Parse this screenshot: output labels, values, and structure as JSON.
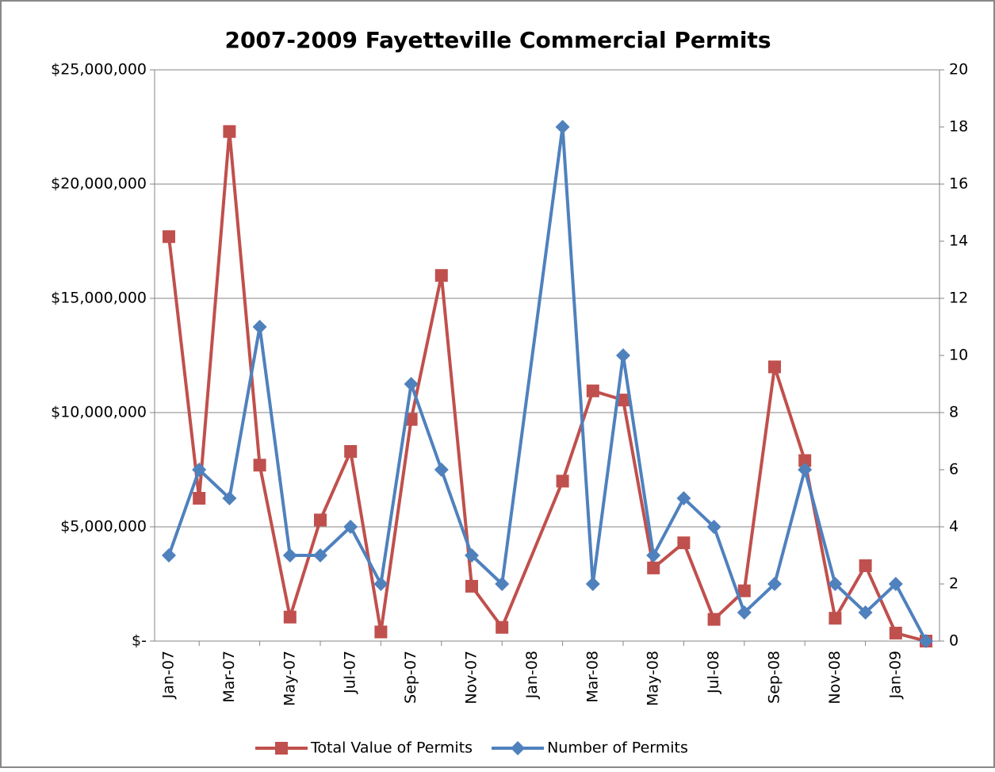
{
  "chart_data": {
    "type": "line",
    "title": "2007-2009 Fayetteville Commercial Permits",
    "x": [
      "2007-01",
      "2007-02",
      "2007-03",
      "2007-04",
      "2007-05",
      "2007-06",
      "2007-07",
      "2007-08",
      "2007-09",
      "2007-10",
      "2007-11",
      "2007-12",
      "2008-02",
      "2008-03",
      "2008-04",
      "2008-05",
      "2008-06",
      "2008-07",
      "2008-08",
      "2008-09",
      "2008-10",
      "2008-11",
      "2008-12",
      "2009-01",
      "2009-02"
    ],
    "xticks": [
      {
        "value": "2007-01",
        "label": "Jan-07"
      },
      {
        "value": "2007-03",
        "label": "Mar-07"
      },
      {
        "value": "2007-05",
        "label": "May-07"
      },
      {
        "value": "2007-07",
        "label": "Jul-07"
      },
      {
        "value": "2007-09",
        "label": "Sep-07"
      },
      {
        "value": "2007-11",
        "label": "Nov-07"
      },
      {
        "value": "2008-01",
        "label": "Jan-08"
      },
      {
        "value": "2008-03",
        "label": "Mar-08"
      },
      {
        "value": "2008-05",
        "label": "May-08"
      },
      {
        "value": "2008-07",
        "label": "Jul-08"
      },
      {
        "value": "2008-09",
        "label": "Sep-08"
      },
      {
        "value": "2008-11",
        "label": "Nov-08"
      },
      {
        "value": "2009-01",
        "label": "Jan-09"
      }
    ],
    "ylim": [
      0,
      25000000
    ],
    "yticks": [
      {
        "value": 0,
        "label": "$-"
      },
      {
        "value": 5000000,
        "label": "$5,000,000"
      },
      {
        "value": 10000000,
        "label": "$10,000,000"
      },
      {
        "value": 15000000,
        "label": "$15,000,000"
      },
      {
        "value": 20000000,
        "label": "$20,000,000"
      },
      {
        "value": 25000000,
        "label": "$25,000,000"
      }
    ],
    "y2lim": [
      0,
      20
    ],
    "y2ticks": [
      0,
      2,
      4,
      6,
      8,
      10,
      12,
      14,
      16,
      18,
      20
    ],
    "grid": true,
    "legend": "bottom",
    "series": [
      {
        "name": "Total Value of Permits",
        "color": "#c0504d",
        "marker": "square",
        "values": [
          17700000,
          6250000,
          22300000,
          7700000,
          1050000,
          5300000,
          8300000,
          400000,
          9700000,
          16000000,
          2400000,
          600000,
          7000000,
          10950000,
          10550000,
          3200000,
          4300000,
          950000,
          2200000,
          12000000,
          7900000,
          1000000,
          3300000,
          350000,
          0
        ]
      },
      {
        "name": "Number of Permits",
        "color": "#4f81bd",
        "marker": "diamond",
        "axis": "y2",
        "values": [
          3,
          6,
          5,
          11,
          3,
          3,
          4,
          2,
          9,
          6,
          3,
          2,
          18,
          2,
          10,
          3,
          5,
          4,
          1,
          2,
          6,
          2,
          1,
          2,
          0
        ]
      }
    ]
  }
}
